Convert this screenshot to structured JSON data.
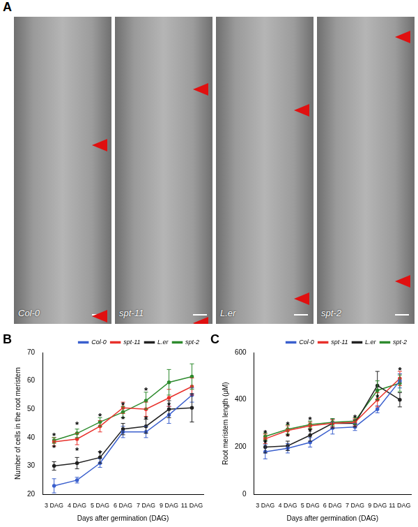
{
  "panel_a": {
    "panel_label": "A",
    "images": [
      {
        "label": "Col-0"
      },
      {
        "label": "spt-11"
      },
      {
        "label": "L.er"
      },
      {
        "label": "spt-2"
      }
    ]
  },
  "chart_data": [
    {
      "type": "line",
      "panel_label": "B",
      "x_label": "Days after germination (DAG)",
      "y_label": "Number of cells in the root meristem",
      "categories": [
        "3 DAG",
        "4 DAG",
        "5 DAG",
        "6 DAG",
        "7 DAG",
        "9 DAG",
        "11 DAG"
      ],
      "series": [
        {
          "name": "Col-0",
          "color": "#3a5fcd",
          "values": [
            23,
            25,
            31,
            42,
            42,
            48,
            55
          ],
          "errors": [
            2.5,
            1,
            1.5,
            2,
            2,
            3,
            2.5
          ]
        },
        {
          "name": "spt-11",
          "color": "#e8312b",
          "values": [
            38.5,
            39.5,
            44,
            50.5,
            50,
            54,
            58
          ],
          "errors": [
            1.5,
            2,
            2,
            2,
            2.5,
            3,
            3
          ]
        },
        {
          "name": "L.er",
          "color": "#222222",
          "values": [
            30,
            31,
            33,
            43,
            44,
            50,
            50.5
          ],
          "errors": [
            1.5,
            2,
            2,
            2,
            2.5,
            3,
            5
          ]
        },
        {
          "name": "spt-2",
          "color": "#2e8b2e",
          "values": [
            39,
            41.5,
            45.5,
            49,
            53,
            59.5,
            61.5
          ],
          "errors": [
            1,
            1.5,
            1.5,
            2,
            3,
            4.5,
            4.5
          ]
        }
      ],
      "annotations": [
        {
          "x": "3 DAG",
          "y": 41,
          "text": "*"
        },
        {
          "x": "3 DAG",
          "y": 37,
          "text": "*"
        },
        {
          "x": "4 DAG",
          "y": 45,
          "text": "*"
        },
        {
          "x": "4 DAG",
          "y": 36,
          "text": "*"
        },
        {
          "x": "5 DAG",
          "y": 48,
          "text": "*"
        },
        {
          "x": "5 DAG",
          "y": 35,
          "text": "*"
        },
        {
          "x": "6 DAG",
          "y": 52,
          "text": "*"
        },
        {
          "x": "6 DAG",
          "y": 47,
          "text": "*"
        },
        {
          "x": "7 DAG",
          "y": 57,
          "text": "*"
        },
        {
          "x": "7 DAG",
          "y": 47,
          "text": "*"
        },
        {
          "x": "9 DAG",
          "y": 52,
          "text": "*"
        }
      ],
      "ylim": [
        20,
        70
      ],
      "yticks": [
        20,
        30,
        40,
        50,
        60,
        70
      ],
      "grid": false,
      "legend": "top",
      "marker": "circle"
    },
    {
      "type": "line",
      "panel_label": "C",
      "x_label": "Days after germination (DAG)",
      "y_label": "Root meristem length (μM)",
      "categories": [
        "3 DAG",
        "4 DAG",
        "5 DAG",
        "6 DAG",
        "7 DAG",
        "9 DAG",
        "11 DAG"
      ],
      "series": [
        {
          "name": "Col-0",
          "color": "#3a5fcd",
          "values": [
            180,
            195,
            220,
            280,
            285,
            360,
            480
          ],
          "errors": [
            30,
            20,
            20,
            25,
            15,
            15,
            30
          ]
        },
        {
          "name": "spt-11",
          "color": "#e8312b",
          "values": [
            235,
            270,
            290,
            300,
            305,
            400,
            490
          ],
          "errors": [
            20,
            20,
            15,
            15,
            15,
            30,
            30
          ]
        },
        {
          "name": "L.er",
          "color": "#222222",
          "values": [
            200,
            205,
            250,
            300,
            300,
            460,
            400
          ],
          "errors": [
            25,
            20,
            25,
            20,
            15,
            60,
            30
          ]
        },
        {
          "name": "spt-2",
          "color": "#2e8b2e",
          "values": [
            245,
            275,
            295,
            305,
            310,
            440,
            470
          ],
          "errors": [
            15,
            20,
            15,
            15,
            15,
            40,
            35
          ]
        }
      ],
      "annotations": [
        {
          "x": "3 DAG",
          "y": 265,
          "text": "*"
        },
        {
          "x": "3 DAG",
          "y": 225,
          "text": "*"
        },
        {
          "x": "4 DAG",
          "y": 300,
          "text": "*"
        },
        {
          "x": "4 DAG",
          "y": 250,
          "text": "*"
        },
        {
          "x": "5 DAG",
          "y": 320,
          "text": "*"
        },
        {
          "x": "5 DAG",
          "y": 270,
          "text": "*"
        },
        {
          "x": "7 DAG",
          "y": 330,
          "text": "*"
        },
        {
          "x": "9 DAG",
          "y": 415,
          "text": "*"
        },
        {
          "x": "11 DAG",
          "y": 530,
          "text": "*"
        }
      ],
      "ylim": [
        0,
        600
      ],
      "yticks": [
        0,
        200,
        400,
        600
      ],
      "grid": false,
      "legend": "top",
      "marker": "circle"
    }
  ]
}
